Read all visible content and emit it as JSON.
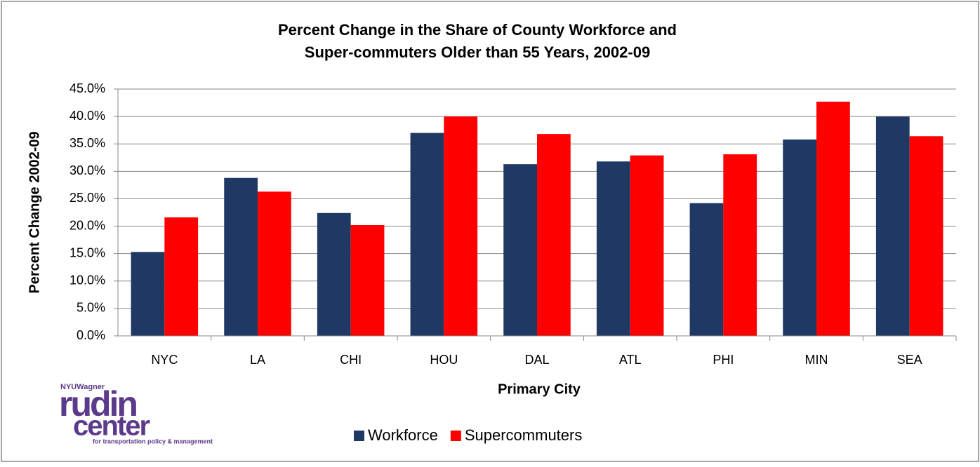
{
  "chart_data": {
    "type": "bar",
    "title": [
      "Percent Change in the Share of County Workforce and",
      "Super-commuters Older than 55 Years, 2002-09"
    ],
    "x_label": "Primary City",
    "y_label": "Percent Change 2002-09",
    "categories": [
      "NYC",
      "LA",
      "CHI",
      "HOU",
      "DAL",
      "ATL",
      "PHI",
      "MIN",
      "SEA"
    ],
    "series": [
      {
        "name": "Workforce",
        "color": "#1f3864",
        "values": [
          15.3,
          28.8,
          22.4,
          37.0,
          31.3,
          31.8,
          24.2,
          35.8,
          40.0
        ]
      },
      {
        "name": "Supercommuters",
        "color": "#ff0000",
        "values": [
          21.6,
          26.3,
          20.2,
          40.0,
          36.8,
          32.9,
          33.1,
          42.7,
          36.4
        ]
      }
    ],
    "ylim": [
      0,
      45
    ],
    "yticks": [
      {
        "value": 0,
        "label": "0.0%"
      },
      {
        "value": 5,
        "label": "5.0%"
      },
      {
        "value": 10,
        "label": "10.0%"
      },
      {
        "value": 15,
        "label": "15.0%"
      },
      {
        "value": 20,
        "label": "20.0%"
      },
      {
        "value": 25,
        "label": "25.0%"
      },
      {
        "value": 30,
        "label": "30.0%"
      },
      {
        "value": 35,
        "label": "35.0%"
      },
      {
        "value": 40,
        "label": "40.0%"
      },
      {
        "value": 45,
        "label": "45.0%"
      }
    ],
    "grid": true,
    "legend": "bottom"
  },
  "logo": {
    "top": "NYUWagner",
    "line1": "rudin",
    "line2": "center",
    "tagline": "for transportation policy & management"
  }
}
